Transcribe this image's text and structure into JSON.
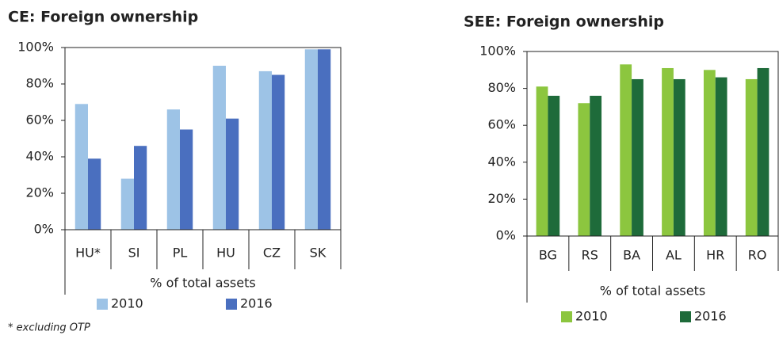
{
  "chart_data": [
    {
      "type": "bar",
      "title": "CE: Foreign ownership",
      "x_label": "% of total assets",
      "footnote": "* excluding OTP",
      "categories": [
        "HU*",
        "SI",
        "PL",
        "HU",
        "CZ",
        "SK"
      ],
      "series": [
        {
          "name": "2010",
          "color": "#9dc3e6",
          "values": [
            69,
            28,
            66,
            90,
            87,
            99
          ]
        },
        {
          "name": "2016",
          "color": "#4a6fbf",
          "values": [
            39,
            46,
            55,
            61,
            85,
            99
          ]
        }
      ],
      "ylim": [
        0,
        100
      ],
      "yticks": [
        {
          "value": 0,
          "label": "0%"
        },
        {
          "value": 20,
          "label": "20%"
        },
        {
          "value": 40,
          "label": "40%"
        },
        {
          "value": 60,
          "label": "60%"
        },
        {
          "value": 80,
          "label": "80%"
        },
        {
          "value": 100,
          "label": "100%"
        }
      ]
    },
    {
      "type": "bar",
      "title": "SEE: Foreign ownership",
      "x_label": "% of total assets",
      "categories": [
        "BG",
        "RS",
        "BA",
        "AL",
        "HR",
        "RO"
      ],
      "series": [
        {
          "name": "2010",
          "color": "#8cc63f",
          "values": [
            81,
            72,
            93,
            91,
            90,
            85
          ]
        },
        {
          "name": "2016",
          "color": "#1e6b3a",
          "values": [
            76,
            76,
            85,
            85,
            86,
            91
          ]
        }
      ],
      "ylim": [
        0,
        100
      ],
      "yticks": [
        {
          "value": 0,
          "label": "0%"
        },
        {
          "value": 20,
          "label": "20%"
        },
        {
          "value": 40,
          "label": "40%"
        },
        {
          "value": 60,
          "label": "60%"
        },
        {
          "value": 80,
          "label": "80%"
        },
        {
          "value": 100,
          "label": "100%"
        }
      ]
    }
  ]
}
